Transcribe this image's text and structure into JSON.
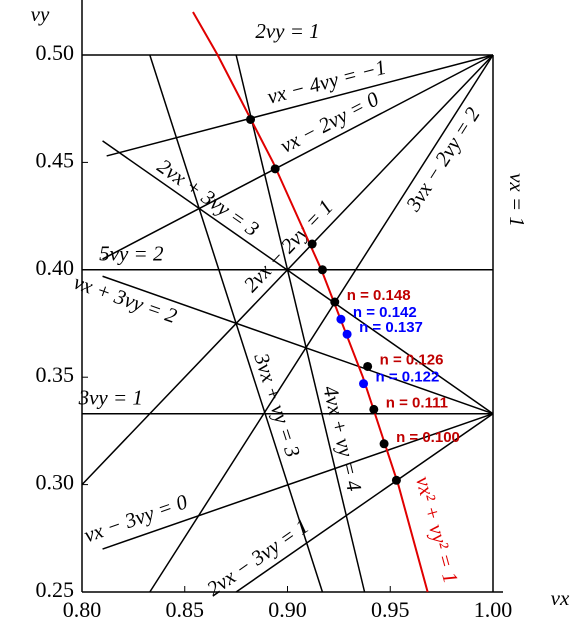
{
  "chart_data": {
    "type": "resonance",
    "x_label": "νx",
    "y_label": "νy",
    "xlim": [
      0.8,
      1.0
    ],
    "ylim": [
      0.25,
      0.5
    ],
    "xticks": [
      {
        "value": 0.8,
        "label": "0.80"
      },
      {
        "value": 0.85,
        "label": "0.85"
      },
      {
        "value": 0.9,
        "label": "0.90"
      },
      {
        "value": 0.95,
        "label": "0.95"
      },
      {
        "value": 1.0,
        "label": "1.00"
      }
    ],
    "yticks": [
      {
        "value": 0.25,
        "label": "0.25"
      },
      {
        "value": 0.3,
        "label": "0.30"
      },
      {
        "value": 0.35,
        "label": "0.35"
      },
      {
        "value": 0.4,
        "label": "0.40"
      },
      {
        "value": 0.45,
        "label": "0.45"
      },
      {
        "value": 0.5,
        "label": "0.50"
      }
    ],
    "lines": [
      {
        "name": "2νy = 1",
        "color": "#000000",
        "x": [
          0.8,
          1.0
        ],
        "y": [
          0.5,
          0.5
        ]
      },
      {
        "name": "νx − 4νy = −1",
        "color": "#000000",
        "x": [
          0.812,
          1.0
        ],
        "y": [
          0.453,
          0.5
        ]
      },
      {
        "name": "νx − 2νy = 0",
        "color": "#000000",
        "x": [
          0.81,
          1.0
        ],
        "y": [
          0.405,
          0.5
        ]
      },
      {
        "name": "2νx − 2νy = 1",
        "color": "#000000",
        "x": [
          0.8,
          1.0
        ],
        "y": [
          0.3,
          0.5
        ]
      },
      {
        "name": "3νx − 2νy = 2",
        "color": "#000000",
        "x": [
          0.833,
          1.0
        ],
        "y": [
          0.25,
          0.5
        ]
      },
      {
        "name": "νx = 1",
        "color": "#000000",
        "x": [
          1.0,
          1.0
        ],
        "y": [
          0.5,
          0.25
        ]
      },
      {
        "name": "2νx + 3νy = 3",
        "color": "#000000",
        "x": [
          0.81,
          1.0
        ],
        "y": [
          0.46,
          0.333
        ]
      },
      {
        "name": "5νy = 2",
        "color": "#000000",
        "x": [
          0.8,
          1.0
        ],
        "y": [
          0.4,
          0.4
        ]
      },
      {
        "name": "νx + 3νy = 2",
        "color": "#000000",
        "x": [
          0.81,
          1.0
        ],
        "y": [
          0.397,
          0.333
        ]
      },
      {
        "name": "3νy = 1",
        "color": "#000000",
        "x": [
          0.8,
          1.0
        ],
        "y": [
          0.333,
          0.333
        ]
      },
      {
        "name": "3νx + νy = 3",
        "color": "#000000",
        "x": [
          0.833,
          0.917
        ],
        "y": [
          0.5,
          0.25
        ]
      },
      {
        "name": "4νx + νy = 4",
        "color": "#000000",
        "x": [
          0.875,
          0.9375
        ],
        "y": [
          0.5,
          0.25
        ]
      },
      {
        "name": "νx − 3νy = 0",
        "color": "#000000",
        "x": [
          0.81,
          1.0
        ],
        "y": [
          0.27,
          0.333
        ]
      },
      {
        "name": "2νx − 3νy = 1",
        "color": "#000000",
        "x": [
          0.875,
          1.0
        ],
        "y": [
          0.25,
          0.333
        ]
      }
    ],
    "curve": {
      "name": "νx² + νy² = 1",
      "color": "#e00000",
      "x": [
        0.854,
        0.866,
        0.893,
        0.9165,
        0.9367,
        0.9539,
        0.9682
      ],
      "y": [
        0.52,
        0.5,
        0.45,
        0.4,
        0.35,
        0.3,
        0.25
      ]
    },
    "points": [
      {
        "x": 0.882,
        "y": 0.47,
        "color": "#000000"
      },
      {
        "x": 0.894,
        "y": 0.447,
        "color": "#000000"
      },
      {
        "x": 0.912,
        "y": 0.412,
        "color": "#000000"
      },
      {
        "x": 0.917,
        "y": 0.4,
        "color": "#000000"
      },
      {
        "x": 0.923,
        "y": 0.385,
        "color": "#000000",
        "label": "n = 0.148",
        "label_color": "#c00000"
      },
      {
        "x": 0.926,
        "y": 0.377,
        "color": "#0000ff",
        "label": "n = 0.142",
        "label_color": "#0000ff"
      },
      {
        "x": 0.929,
        "y": 0.37,
        "color": "#0000ff",
        "label": "n = 0.137",
        "label_color": "#0000ff"
      },
      {
        "x": 0.939,
        "y": 0.355,
        "color": "#000000",
        "label": "n = 0.126",
        "label_color": "#c00000"
      },
      {
        "x": 0.937,
        "y": 0.347,
        "color": "#0000ff",
        "label": "n = 0.122",
        "label_color": "#0000ff"
      },
      {
        "x": 0.942,
        "y": 0.335,
        "color": "#000000",
        "label": "n = 0.111",
        "label_color": "#c00000"
      },
      {
        "x": 0.947,
        "y": 0.319,
        "color": "#000000",
        "label": "n = 0.100",
        "label_color": "#c00000"
      },
      {
        "x": 0.953,
        "y": 0.302,
        "color": "#000000"
      }
    ]
  }
}
